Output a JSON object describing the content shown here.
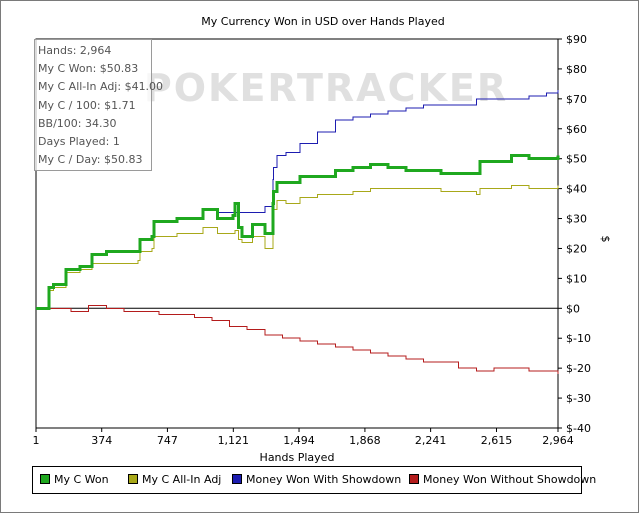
{
  "chart_data": {
    "type": "line",
    "title": "My Currency Won in USD over Hands Played",
    "xlabel": "Hands Played",
    "ylabel": "$",
    "xlim": [
      1,
      2964
    ],
    "ylim": [
      -40,
      90
    ],
    "x_ticks": [
      1,
      374,
      747,
      1121,
      1494,
      1868,
      2241,
      2615,
      2964
    ],
    "x_tick_labels": [
      "1",
      "374",
      "747",
      "1,121",
      "1,494",
      "1,868",
      "2,241",
      "2,615",
      "2,964"
    ],
    "y_ticks": [
      -40,
      -30,
      -20,
      -10,
      0,
      10,
      20,
      30,
      40,
      50,
      60,
      70,
      80,
      90
    ],
    "y_tick_labels": [
      "$-40",
      "$-30",
      "$-20",
      "$-10",
      "$0",
      "$10",
      "$20",
      "$30",
      "$40",
      "$50",
      "$60",
      "$70",
      "$80",
      "$90"
    ],
    "y_axis_side": "right",
    "grid": false,
    "legend_position": "bottom",
    "watermark": "POKERTRACKER",
    "series": [
      {
        "name": "My C Won",
        "color": "#1fa81f",
        "points": [
          [
            1,
            0
          ],
          [
            60,
            0
          ],
          [
            75,
            7
          ],
          [
            100,
            8
          ],
          [
            160,
            8
          ],
          [
            170,
            13
          ],
          [
            250,
            14
          ],
          [
            310,
            14
          ],
          [
            320,
            18
          ],
          [
            400,
            19
          ],
          [
            580,
            19
          ],
          [
            590,
            23
          ],
          [
            660,
            24
          ],
          [
            670,
            29
          ],
          [
            800,
            30
          ],
          [
            940,
            30
          ],
          [
            950,
            33
          ],
          [
            1020,
            33
          ],
          [
            1030,
            30
          ],
          [
            1120,
            31
          ],
          [
            1130,
            35
          ],
          [
            1150,
            27
          ],
          [
            1170,
            24
          ],
          [
            1230,
            28
          ],
          [
            1300,
            25
          ],
          [
            1330,
            25
          ],
          [
            1345,
            35
          ],
          [
            1350,
            39
          ],
          [
            1370,
            42
          ],
          [
            1420,
            42
          ],
          [
            1500,
            44
          ],
          [
            1600,
            44
          ],
          [
            1700,
            46
          ],
          [
            1800,
            47
          ],
          [
            1900,
            48
          ],
          [
            2000,
            47
          ],
          [
            2100,
            46
          ],
          [
            2300,
            45
          ],
          [
            2500,
            45
          ],
          [
            2520,
            49
          ],
          [
            2600,
            49
          ],
          [
            2700,
            51
          ],
          [
            2800,
            50
          ],
          [
            2964,
            51
          ]
        ],
        "line_width": 3
      },
      {
        "name": "My C All-In Adj",
        "color": "#a8a819",
        "points": [
          [
            1,
            0
          ],
          [
            60,
            0
          ],
          [
            75,
            6
          ],
          [
            100,
            7
          ],
          [
            160,
            7
          ],
          [
            170,
            12
          ],
          [
            250,
            13
          ],
          [
            310,
            13
          ],
          [
            320,
            15
          ],
          [
            400,
            15
          ],
          [
            580,
            16
          ],
          [
            590,
            19
          ],
          [
            660,
            20
          ],
          [
            670,
            24
          ],
          [
            800,
            25
          ],
          [
            940,
            25
          ],
          [
            950,
            27
          ],
          [
            1020,
            27
          ],
          [
            1030,
            25
          ],
          [
            1120,
            25
          ],
          [
            1130,
            26
          ],
          [
            1150,
            23
          ],
          [
            1170,
            22
          ],
          [
            1230,
            24
          ],
          [
            1300,
            20
          ],
          [
            1330,
            20
          ],
          [
            1345,
            28
          ],
          [
            1350,
            33
          ],
          [
            1370,
            36
          ],
          [
            1420,
            35
          ],
          [
            1500,
            37
          ],
          [
            1600,
            38
          ],
          [
            1700,
            38
          ],
          [
            1800,
            39
          ],
          [
            1900,
            40
          ],
          [
            2000,
            40
          ],
          [
            2100,
            40
          ],
          [
            2300,
            39
          ],
          [
            2500,
            38
          ],
          [
            2520,
            40
          ],
          [
            2600,
            40
          ],
          [
            2700,
            41
          ],
          [
            2800,
            40
          ],
          [
            2964,
            41
          ]
        ],
        "line_width": 1
      },
      {
        "name": "Money Won With Showdown",
        "color": "#1c1cb0",
        "points": [
          [
            1,
            0
          ],
          [
            60,
            0
          ],
          [
            75,
            7
          ],
          [
            100,
            8
          ],
          [
            160,
            8
          ],
          [
            170,
            13
          ],
          [
            250,
            14
          ],
          [
            310,
            14
          ],
          [
            320,
            18
          ],
          [
            400,
            19
          ],
          [
            580,
            19
          ],
          [
            590,
            23
          ],
          [
            660,
            24
          ],
          [
            670,
            29
          ],
          [
            800,
            30
          ],
          [
            940,
            30
          ],
          [
            950,
            33
          ],
          [
            1020,
            33
          ],
          [
            1030,
            32
          ],
          [
            1120,
            32
          ],
          [
            1300,
            34
          ],
          [
            1330,
            34
          ],
          [
            1345,
            43
          ],
          [
            1350,
            47
          ],
          [
            1370,
            51
          ],
          [
            1420,
            52
          ],
          [
            1500,
            55
          ],
          [
            1600,
            59
          ],
          [
            1700,
            63
          ],
          [
            1800,
            64
          ],
          [
            1900,
            65
          ],
          [
            2000,
            66
          ],
          [
            2100,
            67
          ],
          [
            2200,
            68
          ],
          [
            2300,
            68
          ],
          [
            2500,
            70
          ],
          [
            2600,
            70
          ],
          [
            2700,
            70
          ],
          [
            2800,
            71
          ],
          [
            2900,
            72
          ],
          [
            2964,
            73
          ]
        ],
        "line_width": 1
      },
      {
        "name": "Money Won Without Showdown",
        "color": "#b41c1c",
        "points": [
          [
            1,
            0
          ],
          [
            100,
            0
          ],
          [
            200,
            -1
          ],
          [
            300,
            1
          ],
          [
            400,
            0
          ],
          [
            500,
            -1
          ],
          [
            600,
            -1
          ],
          [
            700,
            -2
          ],
          [
            800,
            -2
          ],
          [
            900,
            -3
          ],
          [
            1000,
            -4
          ],
          [
            1100,
            -6
          ],
          [
            1200,
            -7
          ],
          [
            1300,
            -9
          ],
          [
            1400,
            -10
          ],
          [
            1500,
            -11
          ],
          [
            1600,
            -12
          ],
          [
            1700,
            -13
          ],
          [
            1800,
            -14
          ],
          [
            1900,
            -15
          ],
          [
            2000,
            -16
          ],
          [
            2100,
            -17
          ],
          [
            2200,
            -18
          ],
          [
            2300,
            -18
          ],
          [
            2400,
            -20
          ],
          [
            2500,
            -21
          ],
          [
            2600,
            -20
          ],
          [
            2700,
            -20
          ],
          [
            2800,
            -21
          ],
          [
            2900,
            -21
          ],
          [
            2964,
            -22
          ]
        ],
        "line_width": 1
      }
    ]
  },
  "stats": [
    "Hands: 2,964",
    "My C Won: $50.83",
    "My C All-In Adj: $41.00",
    "My C / 100: $1.71",
    "BB/100: 34.30",
    "Days Played: 1",
    "My C / Day: $50.83"
  ]
}
